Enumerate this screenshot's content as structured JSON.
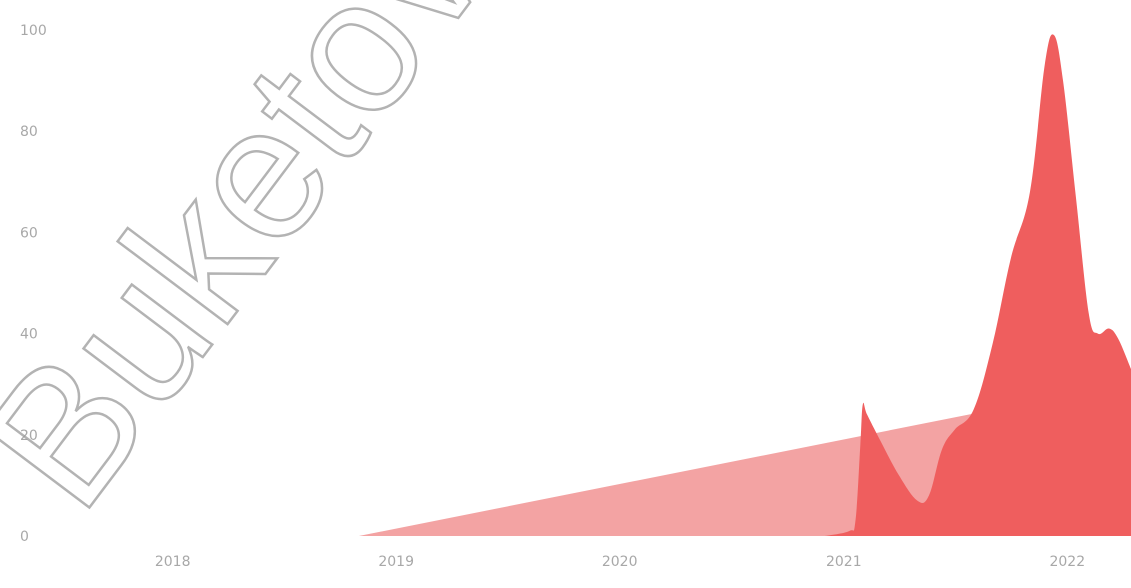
{
  "chart_data": {
    "type": "area",
    "title": "",
    "xlabel": "",
    "ylabel": "",
    "ylim": [
      0,
      100
    ],
    "xlim": [
      "2017-07-01",
      "2022-04-15"
    ],
    "grid": false,
    "legend": "none",
    "y_ticks": [
      0,
      20,
      40,
      60,
      80,
      100
    ],
    "x_ticks": [
      "2018",
      "2019",
      "2020",
      "2021",
      "2022"
    ],
    "series": [
      {
        "color": "#f3a3a3",
        "points": [
          {
            "x": "2018-11-01",
            "y": 0
          },
          {
            "x": "2021-10-15",
            "y": 26
          },
          {
            "x": "2021-12-01",
            "y": 26
          },
          {
            "x": "2021-12-01",
            "y": 0
          }
        ]
      },
      {
        "color": "#ef5e5e",
        "points": [
          {
            "x": "2020-12-01",
            "y": 0
          },
          {
            "x": "2021-01-10",
            "y": 1
          },
          {
            "x": "2021-01-20",
            "y": 3
          },
          {
            "x": "2021-01-28",
            "y": 18
          },
          {
            "x": "2021-02-01",
            "y": 26
          },
          {
            "x": "2021-02-08",
            "y": 24
          },
          {
            "x": "2021-03-01",
            "y": 19
          },
          {
            "x": "2021-04-01",
            "y": 12
          },
          {
            "x": "2021-05-01",
            "y": 7
          },
          {
            "x": "2021-05-20",
            "y": 8
          },
          {
            "x": "2021-06-10",
            "y": 17
          },
          {
            "x": "2021-07-01",
            "y": 21
          },
          {
            "x": "2021-08-01",
            "y": 25
          },
          {
            "x": "2021-09-01",
            "y": 38
          },
          {
            "x": "2021-10-01",
            "y": 55
          },
          {
            "x": "2021-11-01",
            "y": 68
          },
          {
            "x": "2021-11-25",
            "y": 93
          },
          {
            "x": "2021-12-10",
            "y": 99
          },
          {
            "x": "2021-12-25",
            "y": 90
          },
          {
            "x": "2022-01-15",
            "y": 67
          },
          {
            "x": "2022-02-05",
            "y": 44
          },
          {
            "x": "2022-02-20",
            "y": 40
          },
          {
            "x": "2022-03-10",
            "y": 41
          },
          {
            "x": "2022-03-25",
            "y": 39
          },
          {
            "x": "2022-04-15",
            "y": 33
          },
          {
            "x": "2022-04-15",
            "y": 0
          }
        ]
      }
    ]
  },
  "watermark": "Buketov"
}
